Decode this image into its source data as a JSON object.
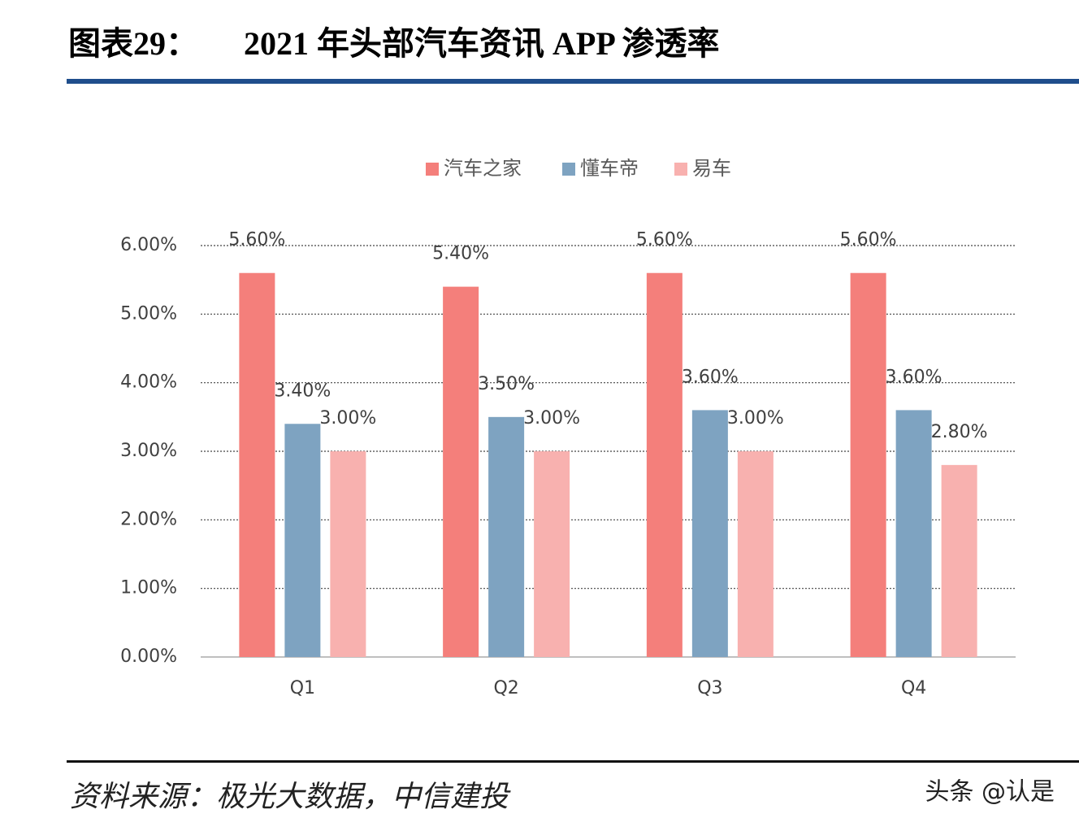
{
  "chart_data": {
    "type": "bar",
    "title": "图表29：",
    "subtitle": "2021 年头部汽车资讯 APP 渗透率",
    "categories": [
      "Q1",
      "Q2",
      "Q3",
      "Q4"
    ],
    "series": [
      {
        "name": "汽车之家",
        "color": "#f47f7b",
        "values": [
          5.6,
          5.4,
          5.6,
          5.6
        ],
        "value_labels": [
          "5.60%",
          "5.40%",
          "5.60%",
          "5.60%"
        ]
      },
      {
        "name": "懂车帝",
        "color": "#7ea3c1",
        "values": [
          3.4,
          3.5,
          3.6,
          3.6
        ],
        "value_labels": [
          "3.40%",
          "3.50%",
          "3.60%",
          "3.60%"
        ]
      },
      {
        "name": "易车",
        "color": "#f8b1af",
        "values": [
          3.0,
          3.0,
          3.0,
          2.8
        ],
        "value_labels": [
          "3.00%",
          "3.00%",
          "3.00%",
          "2.80%"
        ]
      }
    ],
    "ylim": [
      0,
      6
    ],
    "yticks": [
      {
        "value": 0,
        "label": "0.00%"
      },
      {
        "value": 1,
        "label": "1.00%"
      },
      {
        "value": 2,
        "label": "2.00%"
      },
      {
        "value": 3,
        "label": "3.00%"
      },
      {
        "value": 4,
        "label": "4.00%"
      },
      {
        "value": 5,
        "label": "5.00%"
      },
      {
        "value": 6,
        "label": "6.00%"
      }
    ],
    "grid": true,
    "legend": "top",
    "source": "资料来源：极光大数据，中信建投",
    "watermark": "头条 @认是"
  }
}
